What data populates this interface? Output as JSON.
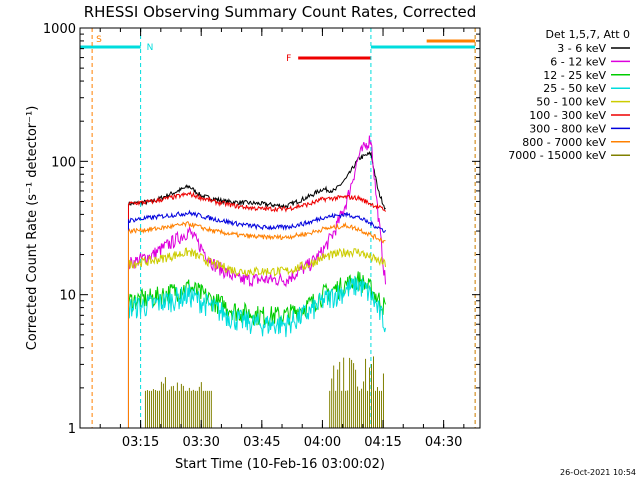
{
  "chart_data": {
    "type": "line",
    "title": "RHESSI Observing Summary Count Rates, Corrected",
    "xlabel": "Start Time (10-Feb-16 03:00:02)",
    "ylabel": "Corrected Count Rate (s⁻¹ detector⁻¹)",
    "ylog": true,
    "xlim": [
      3.0,
      4.65
    ],
    "ylim": [
      1,
      1000
    ],
    "x_ticks": [
      {
        "v": 3.25,
        "label": "03:15"
      },
      {
        "v": 3.5,
        "label": "03:30"
      },
      {
        "v": 3.75,
        "label": "03:45"
      },
      {
        "v": 4.0,
        "label": "04:00"
      },
      {
        "v": 4.25,
        "label": "04:15"
      },
      {
        "v": 4.5,
        "label": "04:30"
      }
    ],
    "y_ticks": [
      {
        "v": 1,
        "label": "1"
      },
      {
        "v": 10,
        "label": "10"
      },
      {
        "v": 100,
        "label": "100"
      },
      {
        "v": 1000,
        "label": "1000"
      }
    ],
    "legend": {
      "header": "Det 1,5,7, Att 0",
      "position": "right"
    },
    "series": [
      {
        "name": "3 - 6 keV",
        "color": "#000000",
        "x": [
          3.2,
          3.3,
          3.45,
          3.5,
          3.6,
          3.75,
          3.85,
          3.95,
          4.0,
          4.05,
          4.1,
          4.15,
          4.2,
          4.23,
          4.26
        ],
        "values": [
          48,
          50,
          65,
          55,
          50,
          48,
          46,
          55,
          62,
          60,
          75,
          105,
          115,
          60,
          44
        ]
      },
      {
        "name": "6 - 12 keV",
        "color": "#dd00dd",
        "x": [
          3.2,
          3.3,
          3.45,
          3.55,
          3.65,
          3.75,
          3.85,
          3.95,
          4.0,
          4.05,
          4.1,
          4.15,
          4.2,
          4.22,
          4.26
        ],
        "values": [
          17,
          20,
          30,
          17,
          13,
          13,
          13,
          17,
          21,
          30,
          50,
          110,
          150,
          60,
          12
        ]
      },
      {
        "name": "12 - 25 keV",
        "color": "#00cc00",
        "x": [
          3.2,
          3.3,
          3.45,
          3.55,
          3.65,
          3.75,
          3.85,
          3.95,
          4.0,
          4.1,
          4.15,
          4.2,
          4.26
        ],
        "values": [
          9,
          9.5,
          11.5,
          9,
          7.5,
          7,
          7,
          8.5,
          10,
          12,
          13,
          11,
          8
        ]
      },
      {
        "name": "25 - 50 keV",
        "color": "#00dddd",
        "x": [
          3.2,
          3.3,
          3.45,
          3.55,
          3.65,
          3.75,
          3.85,
          3.95,
          4.0,
          4.1,
          4.15,
          4.2,
          4.26
        ],
        "values": [
          8,
          8.5,
          10,
          8,
          6.5,
          6,
          6,
          7.5,
          9,
          11,
          12,
          10,
          6
        ]
      },
      {
        "name": "50 - 100 keV",
        "color": "#cccc00",
        "x": [
          3.2,
          3.3,
          3.45,
          3.55,
          3.65,
          3.75,
          3.85,
          3.95,
          4.0,
          4.1,
          4.15,
          4.2,
          4.26
        ],
        "values": [
          17,
          18,
          21,
          17,
          15,
          15,
          15,
          17,
          19,
          21,
          21,
          19,
          17
        ]
      },
      {
        "name": "100 - 300 keV",
        "color": "#ee0000",
        "x": [
          3.2,
          3.3,
          3.45,
          3.55,
          3.65,
          3.75,
          3.85,
          3.95,
          4.0,
          4.1,
          4.15,
          4.2,
          4.26
        ],
        "values": [
          48,
          50,
          57,
          50,
          46,
          44,
          44,
          48,
          52,
          54,
          53,
          48,
          43
        ]
      },
      {
        "name": "300 - 800 keV",
        "color": "#0000dd",
        "x": [
          3.2,
          3.3,
          3.45,
          3.55,
          3.65,
          3.75,
          3.85,
          3.95,
          4.0,
          4.1,
          4.15,
          4.2,
          4.26
        ],
        "values": [
          36,
          38,
          41,
          37,
          34,
          32,
          32,
          35,
          38,
          40,
          38,
          34,
          30
        ]
      },
      {
        "name": "800 - 7000 keV",
        "color": "#ff8000",
        "x": [
          3.2,
          3.3,
          3.45,
          3.55,
          3.65,
          3.75,
          3.85,
          3.95,
          4.0,
          4.1,
          4.15,
          4.2,
          4.26
        ],
        "values": [
          30,
          31,
          34,
          30,
          28,
          27,
          27,
          29,
          31,
          33,
          31,
          28,
          25
        ]
      },
      {
        "name": "7000 - 15000 keV",
        "color": "#808000",
        "x": [],
        "values": []
      }
    ],
    "bursts_7000_15000": [
      {
        "start": 3.27,
        "end": 3.55,
        "level": 2
      },
      {
        "start": 4.03,
        "end": 4.26,
        "level": 3
      }
    ],
    "markers": [
      {
        "label": "S",
        "color": "#ff8000"
      },
      {
        "label": "N",
        "color": "#00dddd"
      },
      {
        "label": "F",
        "color": "#ee0000"
      }
    ],
    "intervals": {
      "saa": [
        {
          "start": 3.0,
          "end": 3.05
        },
        {
          "start": 4.43,
          "end": 4.63
        }
      ],
      "night": [
        {
          "start": 3.0,
          "end": 3.25
        },
        {
          "start": 4.2,
          "end": 4.63
        }
      ],
      "flare": [
        {
          "start": 3.9,
          "end": 4.2
        }
      ]
    },
    "vlines": [
      {
        "x": 3.05,
        "color": "#ff8000"
      },
      {
        "x": 3.25,
        "color": "#00dddd"
      },
      {
        "x": 4.2,
        "color": "#00dddd"
      },
      {
        "x": 4.63,
        "color": "#00dddd"
      },
      {
        "x": 4.63,
        "color": "#ff8000"
      }
    ]
  },
  "footer": {
    "timestamp": "26-Oct-2021 10:54"
  }
}
